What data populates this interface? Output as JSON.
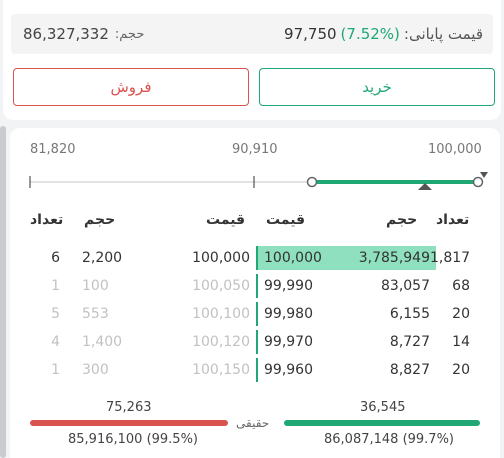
{
  "summary": {
    "final_price_label": "قیمت پایانی:",
    "final_price_change": "(7.52%)",
    "final_price_value": "97,750",
    "volume_label": "حجم:",
    "volume_value": "86,327,332"
  },
  "actions": {
    "buy_label": "خرید",
    "sell_label": "فروش"
  },
  "price_scale": {
    "min": "81,820",
    "mid": "90,910",
    "max": "100,000",
    "current_marker_fraction": 0.64
  },
  "headers": {
    "buy_count": "تعداد",
    "buy_volume": "حجم",
    "buy_price": "قیمت",
    "sell_price": "قیمت",
    "sell_volume": "حجم",
    "sell_count": "تعداد"
  },
  "order_book": [
    {
      "buy_count": "1,817",
      "buy_volume": "3,785,949",
      "buy_price": "100,000",
      "sell_price": "100,000",
      "sell_volume": "2,200",
      "sell_count": "6"
    },
    {
      "buy_count": "68",
      "buy_volume": "83,057",
      "buy_price": "99,990",
      "sell_price": "100,050",
      "sell_volume": "100",
      "sell_count": "1"
    },
    {
      "buy_count": "20",
      "buy_volume": "6,155",
      "buy_price": "99,980",
      "sell_price": "100,100",
      "sell_volume": "553",
      "sell_count": "5"
    },
    {
      "buy_count": "14",
      "buy_volume": "8,727",
      "buy_price": "99,970",
      "sell_price": "100,120",
      "sell_volume": "1,400",
      "sell_count": "4"
    },
    {
      "buy_count": "20",
      "buy_volume": "8,827",
      "buy_price": "99,960",
      "sell_price": "100,150",
      "sell_volume": "300",
      "sell_count": "1"
    }
  ],
  "realtime": {
    "label": "حقیقی",
    "buy_count": "36,545",
    "buy_volume": "86,087,148 (99.7%)",
    "sell_count": "75,263",
    "sell_volume": "85,916,100 (99.5%)",
    "buy_color": "#1fa874",
    "sell_color": "#d9534f"
  },
  "colors": {
    "green": "#1fa874",
    "red": "#d9534f",
    "buy_highlight": "#8fe0bf"
  }
}
